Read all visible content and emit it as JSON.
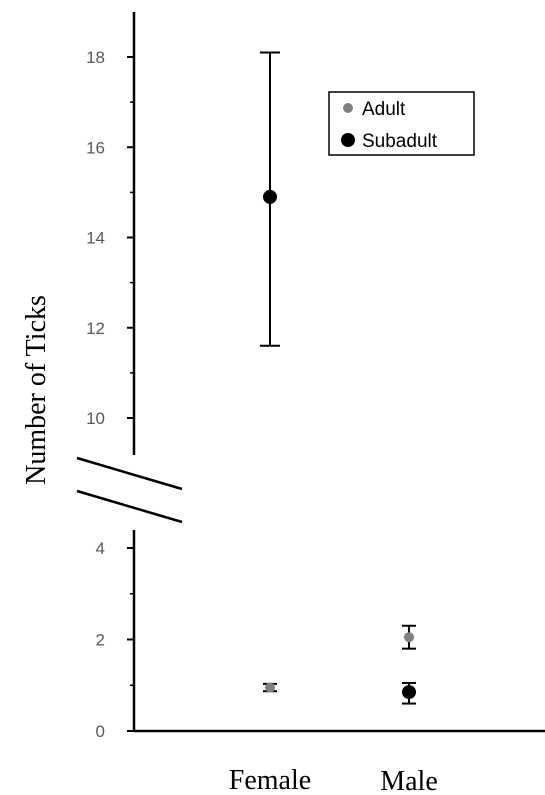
{
  "chart_data": {
    "type": "scatter",
    "ylabel": "Number of Ticks",
    "xlabel": "",
    "categories": [
      "Female",
      "Male"
    ],
    "y_axis_break": [
      4.5,
      9.3
    ],
    "ylim_lower": [
      0,
      4.5
    ],
    "ylim_upper": [
      9.3,
      19
    ],
    "yticks": [
      "0",
      "2",
      "4",
      "10",
      "12",
      "14",
      "16",
      "18"
    ],
    "grid": false,
    "legend": "top-right",
    "series": [
      {
        "name": "Adult",
        "color": "#7f7f7f",
        "values": [
          0.95,
          2.05
        ],
        "error_low": [
          0.87,
          1.8
        ],
        "error_high": [
          1.03,
          2.3
        ]
      },
      {
        "name": "Subadult",
        "color": "#000000",
        "values": [
          14.9,
          0.85
        ],
        "error_low": [
          11.6,
          0.6
        ],
        "error_high": [
          18.1,
          1.05
        ]
      }
    ]
  }
}
